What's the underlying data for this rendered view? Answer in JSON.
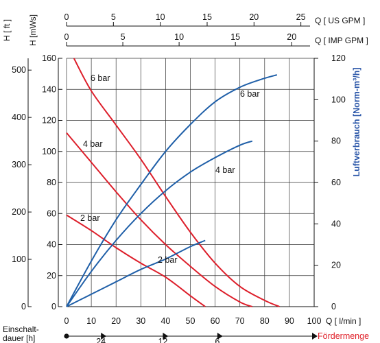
{
  "chart_data": {
    "type": "line",
    "x_label": "Q [ l/min ]",
    "x_ticks": [
      0,
      10,
      20,
      30,
      40,
      50,
      60,
      70,
      80,
      90,
      100
    ],
    "x_range": [
      0,
      100
    ],
    "top_axis_us": {
      "label": "Q [ US GPM ]",
      "ticks": [
        0,
        5,
        10,
        15,
        20,
        25
      ]
    },
    "top_axis_imp": {
      "label": "Q [ IMP GPM ]",
      "ticks": [
        0,
        5,
        10,
        15,
        20
      ]
    },
    "left_axis_ft": {
      "label": "H [ ft ]",
      "ticks": [
        0,
        100,
        200,
        300,
        400,
        500
      ]
    },
    "left_axis_mws": {
      "label": "H [mWs]",
      "ticks": [
        0,
        20,
        40,
        60,
        80,
        100,
        120,
        140,
        160
      ],
      "range": [
        0,
        160
      ]
    },
    "right_axis": {
      "label": "Luftverbrauch [Norm-m³/h]",
      "ticks": [
        0,
        20,
        40,
        60,
        80,
        100,
        120
      ],
      "range": [
        0,
        120
      ]
    },
    "bottom_left_label": "Einschalt-dauer [h]",
    "bottom_right_label": "Fördermenge",
    "bottom_marks": [
      "24",
      "12",
      "6"
    ],
    "colors": {
      "head": "#dd1e2a",
      "air": "#1f5fa8",
      "right_axis_label": "#2a56a8",
      "foerdermenge": "#e0222b"
    },
    "head_series": [
      {
        "name": "6 bar",
        "points": [
          [
            3,
            160
          ],
          [
            10,
            139
          ],
          [
            20,
            117
          ],
          [
            30,
            95
          ],
          [
            40,
            71
          ],
          [
            50,
            48
          ],
          [
            60,
            28
          ],
          [
            70,
            13
          ],
          [
            80,
            4
          ],
          [
            86,
            0
          ]
        ]
      },
      {
        "name": "4 bar",
        "points": [
          [
            0,
            112
          ],
          [
            10,
            93
          ],
          [
            20,
            74
          ],
          [
            30,
            56
          ],
          [
            40,
            40
          ],
          [
            50,
            26
          ],
          [
            60,
            13
          ],
          [
            70,
            3
          ],
          [
            75,
            0
          ]
        ]
      },
      {
        "name": "2 bar",
        "points": [
          [
            0,
            59
          ],
          [
            10,
            49
          ],
          [
            20,
            38
          ],
          [
            30,
            28
          ],
          [
            40,
            19
          ],
          [
            50,
            7
          ],
          [
            56,
            0
          ]
        ]
      }
    ],
    "air_series": [
      {
        "name": "6 bar",
        "points": [
          [
            0,
            0
          ],
          [
            10,
            22
          ],
          [
            20,
            42
          ],
          [
            30,
            59
          ],
          [
            40,
            75
          ],
          [
            50,
            88
          ],
          [
            60,
            99
          ],
          [
            70,
            106
          ],
          [
            79,
            110
          ],
          [
            85,
            112
          ]
        ]
      },
      {
        "name": "4 bar",
        "points": [
          [
            0,
            0
          ],
          [
            10,
            17
          ],
          [
            20,
            32
          ],
          [
            30,
            45
          ],
          [
            40,
            56
          ],
          [
            50,
            65
          ],
          [
            60,
            72
          ],
          [
            70,
            78
          ],
          [
            75,
            80
          ]
        ]
      },
      {
        "name": "2 bar",
        "points": [
          [
            0,
            0
          ],
          [
            10,
            6
          ],
          [
            20,
            12
          ],
          [
            30,
            18
          ],
          [
            40,
            23
          ],
          [
            50,
            29
          ],
          [
            56,
            32
          ]
        ]
      }
    ]
  }
}
